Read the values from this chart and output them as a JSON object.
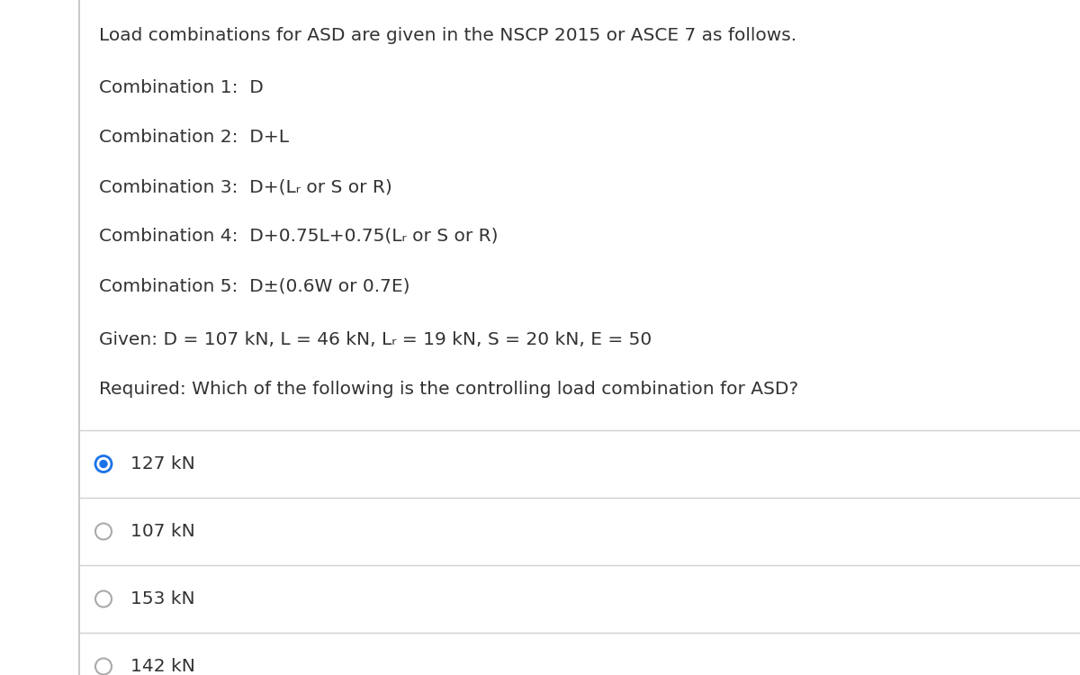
{
  "bg_color": "#ffffff",
  "text_color": "#333333",
  "line_color": "#d0d0d0",
  "border_color": "#c0c0c0",
  "radio_selected_fill": "#1a73e8",
  "radio_selected_edge": "#1a73e8",
  "radio_unselected_edge": "#aaaaaa",
  "font_size_body": 14.5,
  "intro_line": "Load combinations for ASD are given in the NSCP 2015 or ASCE 7 as follows.",
  "combinations": [
    {
      "label": "Combination 1:",
      "formula": "  D"
    },
    {
      "label": "Combination 2:",
      "formula": "  D+L"
    },
    {
      "label": "Combination 3:",
      "formula": "  D+(Lᵣ or S or R)"
    },
    {
      "label": "Combination 4:",
      "formula": "  D+0.75L+0.75(Lᵣ or S or R)"
    },
    {
      "label": "Combination 5:",
      "formula": "  D±(0.6W or 0.7E)"
    }
  ],
  "given_line": "Given: D = 107 kN, L = 46 kN, Lᵣ = 19 kN, S = 20 kN, E = 50",
  "required_line": "Required: Which of the following is the controlling load combination for ASD?",
  "options": [
    {
      "text": "127 kN",
      "selected": true
    },
    {
      "text": "107 kN",
      "selected": false
    },
    {
      "text": "153 kN",
      "selected": false
    },
    {
      "text": "142 kN",
      "selected": false
    }
  ]
}
